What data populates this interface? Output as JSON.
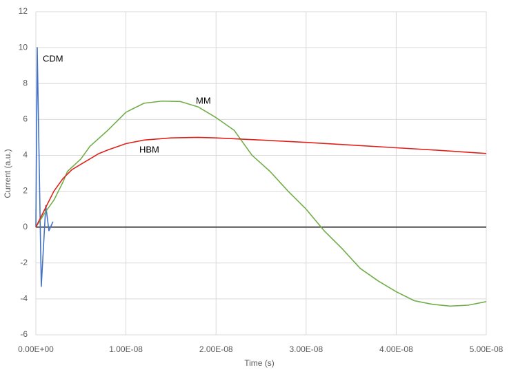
{
  "chart_data": {
    "type": "line",
    "xlabel": "Time (s)",
    "ylabel": "Current (a.u.)",
    "xlim": [
      0,
      5e-08
    ],
    "ylim": [
      -6,
      12
    ],
    "xticks": [
      {
        "value": 0,
        "label": "0.00E+00"
      },
      {
        "value": 1e-08,
        "label": "1.00E-08"
      },
      {
        "value": 2e-08,
        "label": "2.00E-08"
      },
      {
        "value": 3e-08,
        "label": "3.00E-08"
      },
      {
        "value": 4e-08,
        "label": "4.00E-08"
      },
      {
        "value": 5e-08,
        "label": "5.00E-08"
      }
    ],
    "yticks": [
      -6,
      -4,
      -2,
      0,
      2,
      4,
      6,
      8,
      10,
      12
    ],
    "grid": true,
    "series": [
      {
        "name": "CDM",
        "color": "#4472c4",
        "x": [
          0,
          1.5e-10,
          6e-10,
          1.1e-09,
          1.45e-09,
          1.9e-09
        ],
        "values": [
          0,
          10,
          -3.3,
          1.2,
          -0.2,
          0.3
        ]
      },
      {
        "name": "MM",
        "color": "#70ad47",
        "x": [
          0,
          1e-09,
          2e-09,
          2.5e-09,
          3e-09,
          3.5e-09,
          5e-09,
          6e-09,
          8e-09,
          1e-08,
          1.2e-08,
          1.4e-08,
          1.6e-08,
          1.8e-08,
          2e-08,
          2.2e-08,
          2.4e-08,
          2.6e-08,
          2.8e-08,
          3e-08,
          3.2e-08,
          3.4e-08,
          3.6e-08,
          3.8e-08,
          4e-08,
          4.2e-08,
          4.4e-08,
          4.6e-08,
          4.8e-08,
          5e-08
        ],
        "values": [
          0,
          0.8,
          1.5,
          2.0,
          2.5,
          3.1,
          3.8,
          4.5,
          5.4,
          6.4,
          6.9,
          7.02,
          7.0,
          6.7,
          6.1,
          5.4,
          4.0,
          3.1,
          2.0,
          1.0,
          -0.2,
          -1.2,
          -2.3,
          -3.0,
          -3.6,
          -4.1,
          -4.3,
          -4.4,
          -4.35,
          -4.15
        ]
      },
      {
        "name": "HBM",
        "color": "#e0201b",
        "x": [
          0,
          1e-09,
          2e-09,
          3e-09,
          4e-09,
          5e-09,
          6e-09,
          7e-09,
          8e-09,
          1e-08,
          1.2e-08,
          1.5e-08,
          1.8e-08,
          2e-08,
          2.5e-08,
          3e-08,
          3.5e-08,
          4e-08,
          4.5e-08,
          5e-08
        ],
        "values": [
          0,
          1.0,
          2.0,
          2.7,
          3.2,
          3.5,
          3.8,
          4.1,
          4.3,
          4.65,
          4.85,
          4.97,
          5.0,
          4.97,
          4.85,
          4.72,
          4.57,
          4.42,
          4.27,
          4.1
        ]
      }
    ]
  }
}
